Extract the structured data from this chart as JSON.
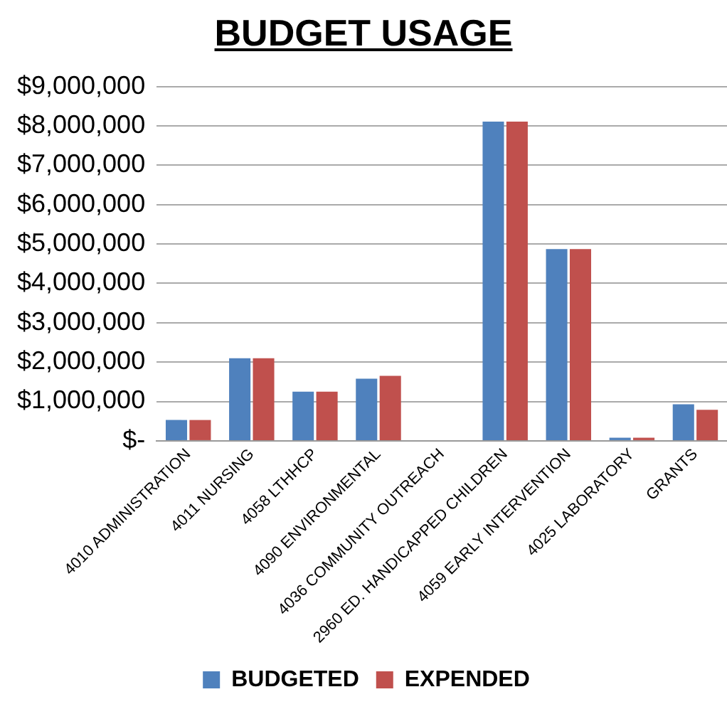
{
  "chart_data": {
    "type": "bar",
    "title": "BUDGET USAGE",
    "categories": [
      "4010 ADMINISTRATION",
      "4011 NURSING",
      "4058 LTHHCP",
      "4090 ENVIRONMENTAL",
      "4036 COMMUNITY OUTREACH",
      "2960 ED. HANDICAPPED CHILDREN",
      "4059 EARLY INTERVENTION",
      "4025 LABORATORY",
      "GRANTS"
    ],
    "series": [
      {
        "name": "BUDGETED",
        "color": "#4f81bd",
        "values": [
          530000,
          2100000,
          1250000,
          1580000,
          0,
          8110000,
          4870000,
          80000,
          930000
        ]
      },
      {
        "name": "EXPENDED",
        "color": "#c0504d",
        "values": [
          530000,
          2100000,
          1250000,
          1650000,
          0,
          8110000,
          4870000,
          80000,
          790000
        ]
      }
    ],
    "ylim": [
      0,
      9000000
    ],
    "yticks": [
      {
        "value": 0,
        "label": "$-"
      },
      {
        "value": 1000000,
        "label": "$1,000,000"
      },
      {
        "value": 2000000,
        "label": "$2,000,000"
      },
      {
        "value": 3000000,
        "label": "$3,000,000"
      },
      {
        "value": 4000000,
        "label": "$4,000,000"
      },
      {
        "value": 5000000,
        "label": "$5,000,000"
      },
      {
        "value": 6000000,
        "label": "$6,000,000"
      },
      {
        "value": 7000000,
        "label": "$7,000,000"
      },
      {
        "value": 8000000,
        "label": "$8,000,000"
      },
      {
        "value": 9000000,
        "label": "$9,000,000"
      }
    ],
    "grid": "y",
    "legend": "bottom"
  }
}
